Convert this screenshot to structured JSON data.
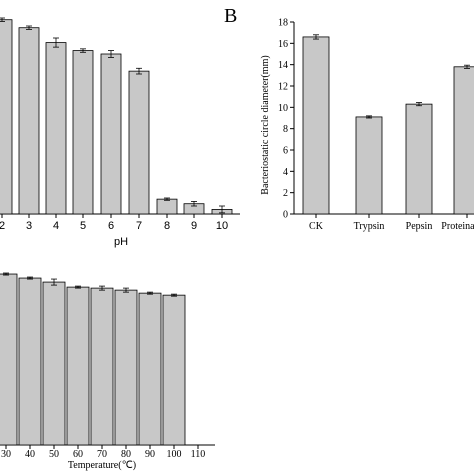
{
  "panels": {
    "b_letter": "B"
  },
  "chart_data": [
    {
      "id": "ph",
      "type": "bar",
      "categories": [
        "2",
        "3",
        "4",
        "5",
        "6",
        "7",
        "8",
        "9",
        "10"
      ],
      "values": [
        17.0,
        16.3,
        15.0,
        14.3,
        14.0,
        12.5,
        1.3,
        0.9,
        0.4
      ],
      "errors": [
        0.15,
        0.15,
        0.4,
        0.15,
        0.3,
        0.25,
        0.1,
        0.2,
        0.3
      ],
      "xlabel": "pH",
      "ylabel": "",
      "ylim": [
        0,
        17.5
      ]
    },
    {
      "id": "enzyme",
      "type": "bar",
      "categories": [
        "CK",
        "Trypsin",
        "Pepsin",
        "Proteinase K"
      ],
      "values": [
        16.6,
        9.1,
        10.3,
        13.8
      ],
      "errors": [
        0.2,
        0.1,
        0.15,
        0.15
      ],
      "ylabel": "Bacteriostatic circle diameter(mm)",
      "yticks": [
        "0",
        "2",
        "4",
        "6",
        "8",
        "10",
        "12",
        "14",
        "16",
        "18"
      ],
      "ylim": [
        0,
        18
      ]
    },
    {
      "id": "temperature",
      "type": "bar",
      "categories": [
        "30",
        "40",
        "50",
        "60",
        "70",
        "80",
        "90",
        "100"
      ],
      "xticks": [
        "30",
        "40",
        "50",
        "60",
        "70",
        "80",
        "90",
        "100",
        "110"
      ],
      "values": [
        17.0,
        16.6,
        16.2,
        15.7,
        15.6,
        15.4,
        15.1,
        14.9
      ],
      "errors": [
        0.1,
        0.1,
        0.3,
        0.1,
        0.2,
        0.2,
        0.1,
        0.1
      ],
      "xlabel": "Temperature(℃)",
      "ylabel": "",
      "ylim": [
        0,
        17.6
      ]
    }
  ]
}
